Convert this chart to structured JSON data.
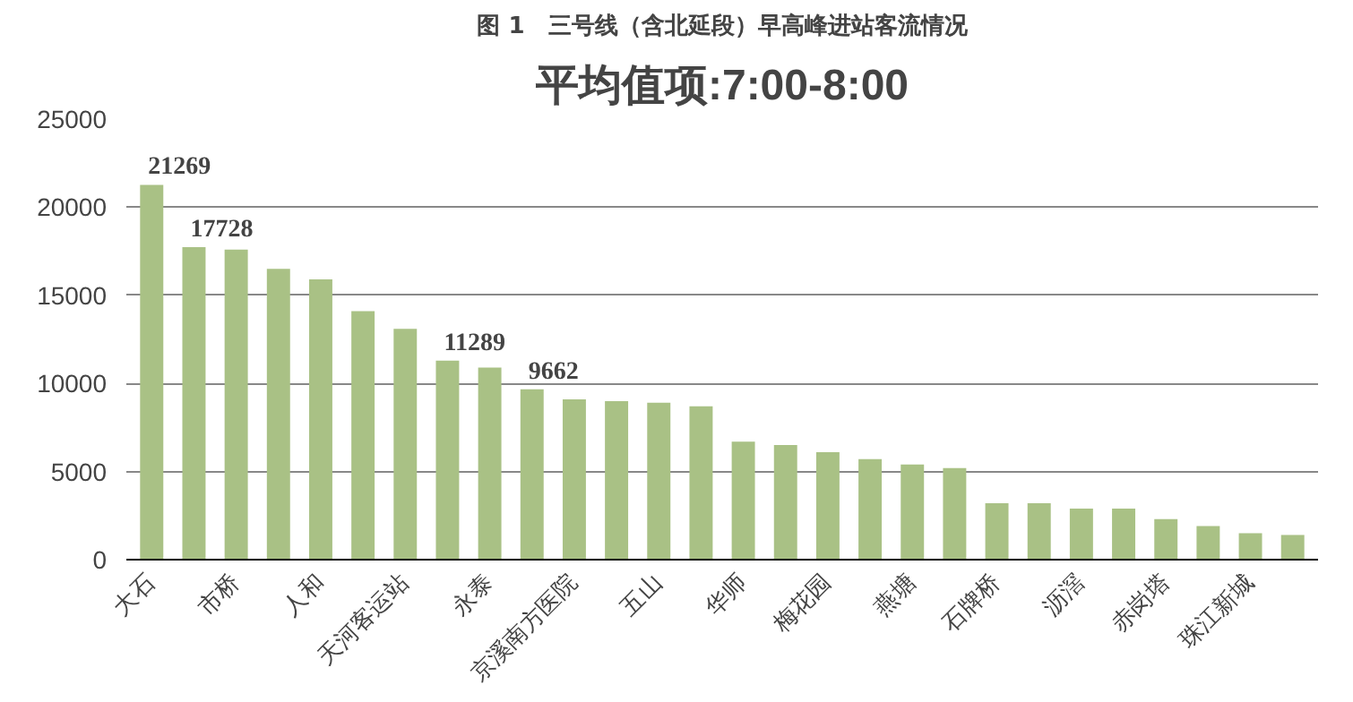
{
  "chart_data": {
    "type": "bar",
    "title": "图 1　三号线（含北延段）早高峰进站客流情况",
    "subtitle": "平均值项:7:00-8:00",
    "categories": [
      "大石",
      null,
      "市桥",
      null,
      "人和",
      null,
      "天河客运站",
      null,
      "永泰",
      null,
      "京溪南方医院",
      null,
      "五山",
      null,
      "华师",
      null,
      "梅花园",
      null,
      "燕塘",
      null,
      "石牌桥",
      null,
      "沥滘",
      null,
      "赤岗塔",
      null,
      "珠江新城",
      null
    ],
    "values": [
      21269,
      17728,
      17600,
      16500,
      15900,
      14100,
      13100,
      11289,
      10900,
      9662,
      9100,
      9000,
      8900,
      8700,
      6700,
      6500,
      6100,
      5700,
      5400,
      5200,
      3200,
      3200,
      2900,
      2900,
      2300,
      1900,
      1500,
      1400
    ],
    "value_labels": [
      "21269",
      "17728",
      null,
      null,
      null,
      null,
      null,
      "11289",
      null,
      "9662",
      null,
      null,
      null,
      null,
      null,
      null,
      null,
      null,
      null,
      null,
      null,
      null,
      null,
      null,
      null,
      null,
      null,
      null
    ],
    "color": "#a9c185",
    "ylim": [
      0,
      25000
    ],
    "yticks": [
      0,
      5000,
      10000,
      15000,
      20000,
      25000
    ],
    "grid": "y"
  }
}
